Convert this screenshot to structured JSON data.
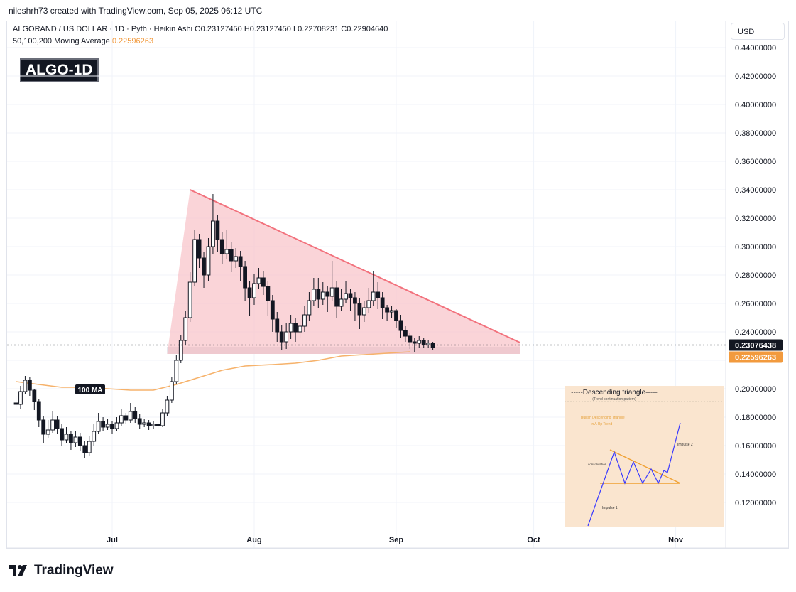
{
  "header": {
    "credit": "nileshrh73 created with TradingView.com, Sep 05, 2025 06:12 UTC",
    "legend_line1": "ALGORAND / US DOLLAR · 1D · Pyth · Heikin Ashi  O0.23127450  H0.23127450  L0.22708231  C0.22904640",
    "legend_ma_label": "50,100,200 Moving Average",
    "legend_ma_value": "0.22596263",
    "ticker_badge": "ALGO-1D",
    "currency": "USD"
  },
  "footer": {
    "logo_text": "TradingView"
  },
  "colors": {
    "up": "#131722",
    "down": "#131722",
    "ma": "#f6b26b",
    "triangle_fill": "#f8c6cb",
    "triangle_line": "#f2727d",
    "support_band": "#d1d4dc",
    "inset_bg": "#fae5cf"
  },
  "chart_data": {
    "type": "candlestick",
    "price_axis": {
      "min": 0.1,
      "max": 0.45,
      "ticks": [
        "0.44000000",
        "0.42000000",
        "0.40000000",
        "0.38000000",
        "0.36000000",
        "0.34000000",
        "0.32000000",
        "0.30000000",
        "0.28000000",
        "0.26000000",
        "0.24000000",
        "0.20000000",
        "0.18000000",
        "0.16000000",
        "0.14000000",
        "0.12000000"
      ],
      "tick_values": [
        0.44,
        0.42,
        0.4,
        0.38,
        0.36,
        0.34,
        0.32,
        0.3,
        0.28,
        0.26,
        0.24,
        0.2,
        0.18,
        0.16,
        0.14,
        0.12
      ]
    },
    "time_axis": {
      "labels": [
        "Jul",
        "Aug",
        "Sep",
        "Oct",
        "Nov"
      ],
      "label_dates": [
        "2025-07-01",
        "2025-08-01",
        "2025-09-01",
        "2025-10-01",
        "2025-11-01"
      ],
      "start_date": "2025-06-10",
      "end_date": "2025-11-15"
    },
    "last_price": {
      "value": 0.23076438,
      "label": "0.23076438"
    },
    "ma_price": {
      "value": 0.22596263,
      "label": "0.22596263"
    },
    "ma_label": "100 MA",
    "candles_start_date": "2025-06-10",
    "candles": [
      [
        0.19,
        0.189,
        0.195,
        0.187
      ],
      [
        0.189,
        0.198,
        0.202,
        0.186
      ],
      [
        0.198,
        0.206,
        0.209,
        0.196
      ],
      [
        0.206,
        0.199,
        0.208,
        0.195
      ],
      [
        0.199,
        0.191,
        0.2,
        0.185
      ],
      [
        0.191,
        0.178,
        0.193,
        0.173
      ],
      [
        0.178,
        0.168,
        0.181,
        0.162
      ],
      [
        0.168,
        0.171,
        0.178,
        0.165
      ],
      [
        0.171,
        0.178,
        0.184,
        0.169
      ],
      [
        0.178,
        0.172,
        0.181,
        0.168
      ],
      [
        0.172,
        0.164,
        0.175,
        0.16
      ],
      [
        0.164,
        0.168,
        0.173,
        0.162
      ],
      [
        0.168,
        0.162,
        0.17,
        0.157
      ],
      [
        0.162,
        0.166,
        0.17,
        0.159
      ],
      [
        0.166,
        0.16,
        0.169,
        0.156
      ],
      [
        0.16,
        0.155,
        0.163,
        0.151
      ],
      [
        0.155,
        0.163,
        0.167,
        0.153
      ],
      [
        0.163,
        0.17,
        0.175,
        0.16
      ],
      [
        0.17,
        0.177,
        0.183,
        0.168
      ],
      [
        0.177,
        0.173,
        0.18,
        0.17
      ],
      [
        0.173,
        0.175,
        0.179,
        0.171
      ],
      [
        0.175,
        0.172,
        0.177,
        0.168
      ],
      [
        0.172,
        0.176,
        0.18,
        0.17
      ],
      [
        0.176,
        0.181,
        0.186,
        0.174
      ],
      [
        0.181,
        0.178,
        0.183,
        0.175
      ],
      [
        0.178,
        0.184,
        0.19,
        0.176
      ],
      [
        0.184,
        0.179,
        0.187,
        0.176
      ],
      [
        0.179,
        0.175,
        0.182,
        0.172
      ],
      [
        0.175,
        0.176,
        0.179,
        0.173
      ],
      [
        0.176,
        0.174,
        0.178,
        0.171
      ],
      [
        0.174,
        0.175,
        0.177,
        0.172
      ],
      [
        0.175,
        0.174,
        0.176,
        0.172
      ],
      [
        0.174,
        0.183,
        0.186,
        0.173
      ],
      [
        0.183,
        0.192,
        0.195,
        0.181
      ],
      [
        0.192,
        0.205,
        0.208,
        0.19
      ],
      [
        0.205,
        0.22,
        0.224,
        0.203
      ],
      [
        0.22,
        0.234,
        0.238,
        0.218
      ],
      [
        0.234,
        0.25,
        0.255,
        0.231
      ],
      [
        0.25,
        0.275,
        0.282,
        0.247
      ],
      [
        0.275,
        0.305,
        0.312,
        0.272
      ],
      [
        0.305,
        0.292,
        0.309,
        0.285
      ],
      [
        0.292,
        0.28,
        0.296,
        0.271
      ],
      [
        0.28,
        0.3,
        0.306,
        0.276
      ],
      [
        0.3,
        0.318,
        0.337,
        0.295
      ],
      [
        0.318,
        0.305,
        0.322,
        0.296
      ],
      [
        0.305,
        0.295,
        0.31,
        0.288
      ],
      [
        0.295,
        0.298,
        0.312,
        0.291
      ],
      [
        0.298,
        0.29,
        0.303,
        0.282
      ],
      [
        0.29,
        0.293,
        0.299,
        0.285
      ],
      [
        0.293,
        0.286,
        0.297,
        0.276
      ],
      [
        0.286,
        0.271,
        0.29,
        0.262
      ],
      [
        0.271,
        0.264,
        0.276,
        0.251
      ],
      [
        0.264,
        0.274,
        0.281,
        0.259
      ],
      [
        0.274,
        0.278,
        0.285,
        0.27
      ],
      [
        0.278,
        0.272,
        0.283,
        0.266
      ],
      [
        0.272,
        0.262,
        0.276,
        0.251
      ],
      [
        0.262,
        0.249,
        0.266,
        0.24
      ],
      [
        0.249,
        0.24,
        0.254,
        0.233
      ],
      [
        0.24,
        0.233,
        0.245,
        0.227
      ],
      [
        0.233,
        0.24,
        0.246,
        0.228
      ],
      [
        0.24,
        0.246,
        0.252,
        0.235
      ],
      [
        0.246,
        0.24,
        0.25,
        0.233
      ],
      [
        0.24,
        0.244,
        0.249,
        0.236
      ],
      [
        0.244,
        0.252,
        0.258,
        0.24
      ],
      [
        0.252,
        0.262,
        0.268,
        0.248
      ],
      [
        0.262,
        0.27,
        0.278,
        0.258
      ],
      [
        0.27,
        0.263,
        0.278,
        0.257
      ],
      [
        0.263,
        0.268,
        0.275,
        0.259
      ],
      [
        0.268,
        0.265,
        0.272,
        0.254
      ],
      [
        0.265,
        0.271,
        0.29,
        0.262
      ],
      [
        0.271,
        0.258,
        0.276,
        0.25
      ],
      [
        0.258,
        0.263,
        0.27,
        0.255
      ],
      [
        0.263,
        0.267,
        0.276,
        0.26
      ],
      [
        0.267,
        0.264,
        0.27,
        0.255
      ],
      [
        0.264,
        0.26,
        0.268,
        0.248
      ],
      [
        0.26,
        0.252,
        0.264,
        0.242
      ],
      [
        0.252,
        0.257,
        0.262,
        0.247
      ],
      [
        0.257,
        0.262,
        0.271,
        0.253
      ],
      [
        0.262,
        0.268,
        0.283,
        0.258
      ],
      [
        0.268,
        0.264,
        0.275,
        0.256
      ],
      [
        0.264,
        0.257,
        0.268,
        0.249
      ],
      [
        0.257,
        0.254,
        0.259,
        0.248
      ],
      [
        0.254,
        0.255,
        0.258,
        0.25
      ],
      [
        0.255,
        0.248,
        0.256,
        0.243
      ],
      [
        0.248,
        0.241,
        0.252,
        0.236
      ],
      [
        0.241,
        0.237,
        0.244,
        0.233
      ],
      [
        0.237,
        0.233,
        0.239,
        0.228
      ],
      [
        0.233,
        0.232,
        0.236,
        0.226
      ],
      [
        0.232,
        0.234,
        0.237,
        0.229
      ],
      [
        0.234,
        0.231,
        0.236,
        0.229
      ],
      [
        0.231,
        0.232,
        0.234,
        0.229
      ],
      [
        0.232,
        0.229,
        0.233,
        0.227
      ]
    ],
    "ma_points": [
      [
        "2025-06-10",
        0.205
      ],
      [
        "2025-06-15",
        0.203
      ],
      [
        "2025-06-20",
        0.201
      ],
      [
        "2025-06-25",
        0.201
      ],
      [
        "2025-06-30",
        0.2
      ],
      [
        "2025-07-05",
        0.199
      ],
      [
        "2025-07-10",
        0.199
      ],
      [
        "2025-07-15",
        0.203
      ],
      [
        "2025-07-20",
        0.208
      ],
      [
        "2025-07-25",
        0.213
      ],
      [
        "2025-07-30",
        0.216
      ],
      [
        "2025-08-05",
        0.217
      ],
      [
        "2025-08-10",
        0.218
      ],
      [
        "2025-08-15",
        0.22
      ],
      [
        "2025-08-20",
        0.223
      ],
      [
        "2025-08-25",
        0.224
      ],
      [
        "2025-08-30",
        0.225
      ],
      [
        "2025-09-04",
        0.226
      ]
    ],
    "triangle": {
      "points": [
        [
          "2025-07-13",
          0.2245
        ],
        [
          "2025-07-18",
          0.34
        ],
        [
          "2025-09-28",
          0.2325
        ],
        [
          "2025-09-28",
          0.2245
        ]
      ]
    },
    "support_band": {
      "start": "2025-07-13",
      "end": "2025-09-28",
      "low": 0.2245,
      "high": 0.2295
    },
    "inset": {
      "title": "-----Descending triangle-----",
      "subtitle": "(Trend continuation pattern)",
      "label_bullish": "Bullish Descending Triangle",
      "label_uptrend": "In A Up Trend",
      "label_consolidation": "consolidation",
      "label_impulse1": "Impulse 1",
      "label_impulse2": "Impulse 2"
    }
  }
}
